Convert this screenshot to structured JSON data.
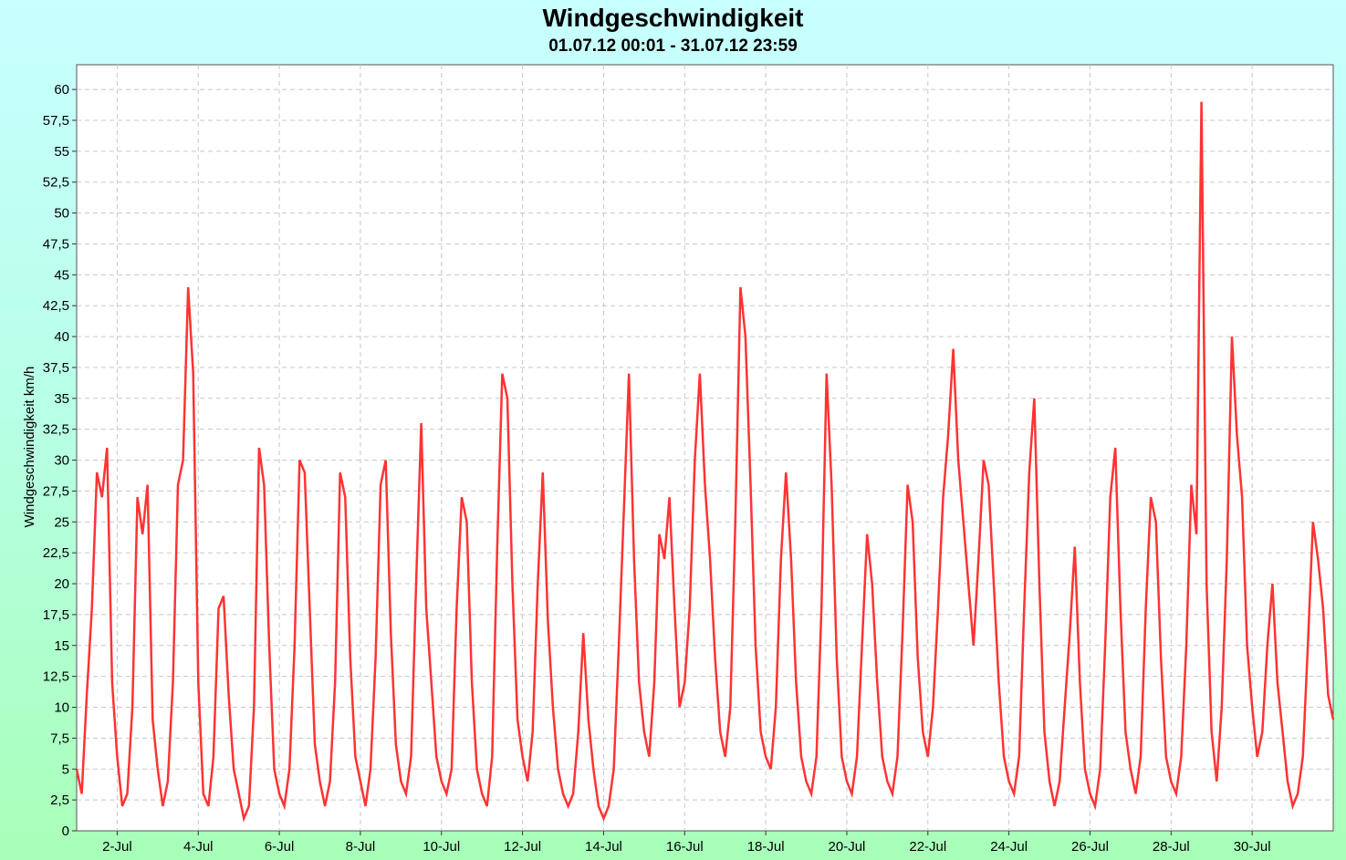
{
  "chart_data": {
    "type": "line",
    "title": "Windgeschwindigkeit",
    "subtitle": "01.07.12 00:01 - 31.07.12 23:59",
    "xlabel": "",
    "ylabel": "Windgeschwindigkeit km/h",
    "x_range": [
      "2012-07-01 00:01",
      "2012-07-31 23:59"
    ],
    "x_ticks": [
      "2-Jul",
      "4-Jul",
      "6-Jul",
      "8-Jul",
      "10-Jul",
      "12-Jul",
      "14-Jul",
      "16-Jul",
      "18-Jul",
      "20-Jul",
      "22-Jul",
      "24-Jul",
      "26-Jul",
      "28-Jul",
      "30-Jul"
    ],
    "x_tick_days": [
      2,
      4,
      6,
      8,
      10,
      12,
      14,
      16,
      18,
      20,
      22,
      24,
      26,
      28,
      30
    ],
    "ylim": [
      0,
      62
    ],
    "y_ticks": [
      "0",
      "2,5",
      "5",
      "7,5",
      "10",
      "12,5",
      "15",
      "17,5",
      "20",
      "22,5",
      "25",
      "27,5",
      "30",
      "32,5",
      "35",
      "37,5",
      "40",
      "42,5",
      "45",
      "47,5",
      "50",
      "52,5",
      "55",
      "57,5",
      "60"
    ],
    "y_tick_values": [
      0,
      2.5,
      5,
      7.5,
      10,
      12.5,
      15,
      17.5,
      20,
      22.5,
      25,
      27.5,
      30,
      32.5,
      35,
      37.5,
      40,
      42.5,
      45,
      47.5,
      50,
      52.5,
      55,
      57.5,
      60
    ],
    "grid": true,
    "series": [
      {
        "name": "",
        "color": "#ff3333",
        "points": [
          [
            "2012-07-01 00:00",
            5
          ],
          [
            "2012-07-01 03:00",
            3
          ],
          [
            "2012-07-01 06:00",
            11
          ],
          [
            "2012-07-01 09:00",
            18
          ],
          [
            "2012-07-01 12:00",
            29
          ],
          [
            "2012-07-01 15:00",
            27
          ],
          [
            "2012-07-01 18:00",
            31
          ],
          [
            "2012-07-01 21:00",
            12
          ],
          [
            "2012-07-02 00:00",
            6
          ],
          [
            "2012-07-02 03:00",
            2
          ],
          [
            "2012-07-02 06:00",
            3
          ],
          [
            "2012-07-02 09:00",
            10
          ],
          [
            "2012-07-02 12:00",
            27
          ],
          [
            "2012-07-02 15:00",
            24
          ],
          [
            "2012-07-02 18:00",
            28
          ],
          [
            "2012-07-02 21:00",
            9
          ],
          [
            "2012-07-03 00:00",
            5
          ],
          [
            "2012-07-03 03:00",
            2
          ],
          [
            "2012-07-03 06:00",
            4
          ],
          [
            "2012-07-03 09:00",
            12
          ],
          [
            "2012-07-03 12:00",
            28
          ],
          [
            "2012-07-03 15:00",
            30
          ],
          [
            "2012-07-03 18:00",
            44
          ],
          [
            "2012-07-03 21:00",
            37
          ],
          [
            "2012-07-04 00:00",
            12
          ],
          [
            "2012-07-04 03:00",
            3
          ],
          [
            "2012-07-04 06:00",
            2
          ],
          [
            "2012-07-04 09:00",
            6
          ],
          [
            "2012-07-04 12:00",
            18
          ],
          [
            "2012-07-04 15:00",
            19
          ],
          [
            "2012-07-04 18:00",
            11
          ],
          [
            "2012-07-04 21:00",
            5
          ],
          [
            "2012-07-05 00:00",
            3
          ],
          [
            "2012-07-05 03:00",
            1
          ],
          [
            "2012-07-05 06:00",
            2
          ],
          [
            "2012-07-05 09:00",
            10
          ],
          [
            "2012-07-05 12:00",
            31
          ],
          [
            "2012-07-05 15:00",
            28
          ],
          [
            "2012-07-05 18:00",
            15
          ],
          [
            "2012-07-05 21:00",
            5
          ],
          [
            "2012-07-06 00:00",
            3
          ],
          [
            "2012-07-06 03:00",
            2
          ],
          [
            "2012-07-06 06:00",
            5
          ],
          [
            "2012-07-06 09:00",
            15
          ],
          [
            "2012-07-06 12:00",
            30
          ],
          [
            "2012-07-06 15:00",
            29
          ],
          [
            "2012-07-06 18:00",
            18
          ],
          [
            "2012-07-06 21:00",
            7
          ],
          [
            "2012-07-07 00:00",
            4
          ],
          [
            "2012-07-07 03:00",
            2
          ],
          [
            "2012-07-07 06:00",
            4
          ],
          [
            "2012-07-07 09:00",
            12
          ],
          [
            "2012-07-07 12:00",
            29
          ],
          [
            "2012-07-07 15:00",
            27
          ],
          [
            "2012-07-07 18:00",
            14
          ],
          [
            "2012-07-07 21:00",
            6
          ],
          [
            "2012-07-08 00:00",
            4
          ],
          [
            "2012-07-08 03:00",
            2
          ],
          [
            "2012-07-08 06:00",
            5
          ],
          [
            "2012-07-08 09:00",
            14
          ],
          [
            "2012-07-08 12:00",
            28
          ],
          [
            "2012-07-08 15:00",
            30
          ],
          [
            "2012-07-08 18:00",
            16
          ],
          [
            "2012-07-08 21:00",
            7
          ],
          [
            "2012-07-09 00:00",
            4
          ],
          [
            "2012-07-09 03:00",
            3
          ],
          [
            "2012-07-09 06:00",
            6
          ],
          [
            "2012-07-09 09:00",
            20
          ],
          [
            "2012-07-09 12:00",
            33
          ],
          [
            "2012-07-09 15:00",
            18
          ],
          [
            "2012-07-09 18:00",
            12
          ],
          [
            "2012-07-09 21:00",
            6
          ],
          [
            "2012-07-10 00:00",
            4
          ],
          [
            "2012-07-10 03:00",
            3
          ],
          [
            "2012-07-10 06:00",
            5
          ],
          [
            "2012-07-10 09:00",
            18
          ],
          [
            "2012-07-10 12:00",
            27
          ],
          [
            "2012-07-10 15:00",
            25
          ],
          [
            "2012-07-10 18:00",
            12
          ],
          [
            "2012-07-10 21:00",
            5
          ],
          [
            "2012-07-11 00:00",
            3
          ],
          [
            "2012-07-11 03:00",
            2
          ],
          [
            "2012-07-11 06:00",
            6
          ],
          [
            "2012-07-11 09:00",
            23
          ],
          [
            "2012-07-11 12:00",
            37
          ],
          [
            "2012-07-11 15:00",
            35
          ],
          [
            "2012-07-11 18:00",
            20
          ],
          [
            "2012-07-11 21:00",
            9
          ],
          [
            "2012-07-12 00:00",
            6
          ],
          [
            "2012-07-12 03:00",
            4
          ],
          [
            "2012-07-12 06:00",
            8
          ],
          [
            "2012-07-12 09:00",
            20
          ],
          [
            "2012-07-12 12:00",
            29
          ],
          [
            "2012-07-12 15:00",
            17
          ],
          [
            "2012-07-12 18:00",
            10
          ],
          [
            "2012-07-12 21:00",
            5
          ],
          [
            "2012-07-13 00:00",
            3
          ],
          [
            "2012-07-13 03:00",
            2
          ],
          [
            "2012-07-13 06:00",
            3
          ],
          [
            "2012-07-13 09:00",
            8
          ],
          [
            "2012-07-13 12:00",
            16
          ],
          [
            "2012-07-13 15:00",
            9
          ],
          [
            "2012-07-13 18:00",
            5
          ],
          [
            "2012-07-13 21:00",
            2
          ],
          [
            "2012-07-14 00:00",
            1
          ],
          [
            "2012-07-14 03:00",
            2
          ],
          [
            "2012-07-14 06:00",
            5
          ],
          [
            "2012-07-14 09:00",
            15
          ],
          [
            "2012-07-14 12:00",
            26
          ],
          [
            "2012-07-14 15:00",
            37
          ],
          [
            "2012-07-14 18:00",
            22
          ],
          [
            "2012-07-14 21:00",
            12
          ],
          [
            "2012-07-15 00:00",
            8
          ],
          [
            "2012-07-15 03:00",
            6
          ],
          [
            "2012-07-15 06:00",
            12
          ],
          [
            "2012-07-15 09:00",
            24
          ],
          [
            "2012-07-15 12:00",
            22
          ],
          [
            "2012-07-15 15:00",
            27
          ],
          [
            "2012-07-15 18:00",
            18
          ],
          [
            "2012-07-15 21:00",
            10
          ],
          [
            "2012-07-16 00:00",
            12
          ],
          [
            "2012-07-16 03:00",
            18
          ],
          [
            "2012-07-16 06:00",
            30
          ],
          [
            "2012-07-16 09:00",
            37
          ],
          [
            "2012-07-16 12:00",
            28
          ],
          [
            "2012-07-16 15:00",
            22
          ],
          [
            "2012-07-16 18:00",
            14
          ],
          [
            "2012-07-16 21:00",
            8
          ],
          [
            "2012-07-17 00:00",
            6
          ],
          [
            "2012-07-17 03:00",
            10
          ],
          [
            "2012-07-17 06:00",
            25
          ],
          [
            "2012-07-17 09:00",
            44
          ],
          [
            "2012-07-17 12:00",
            40
          ],
          [
            "2012-07-17 15:00",
            28
          ],
          [
            "2012-07-17 18:00",
            15
          ],
          [
            "2012-07-17 21:00",
            8
          ],
          [
            "2012-07-18 00:00",
            6
          ],
          [
            "2012-07-18 03:00",
            5
          ],
          [
            "2012-07-18 06:00",
            10
          ],
          [
            "2012-07-18 09:00",
            22
          ],
          [
            "2012-07-18 12:00",
            29
          ],
          [
            "2012-07-18 15:00",
            22
          ],
          [
            "2012-07-18 18:00",
            12
          ],
          [
            "2012-07-18 21:00",
            6
          ],
          [
            "2012-07-19 00:00",
            4
          ],
          [
            "2012-07-19 03:00",
            3
          ],
          [
            "2012-07-19 06:00",
            6
          ],
          [
            "2012-07-19 09:00",
            18
          ],
          [
            "2012-07-19 12:00",
            37
          ],
          [
            "2012-07-19 15:00",
            28
          ],
          [
            "2012-07-19 18:00",
            14
          ],
          [
            "2012-07-19 21:00",
            6
          ],
          [
            "2012-07-20 00:00",
            4
          ],
          [
            "2012-07-20 03:00",
            3
          ],
          [
            "2012-07-20 06:00",
            6
          ],
          [
            "2012-07-20 09:00",
            15
          ],
          [
            "2012-07-20 12:00",
            24
          ],
          [
            "2012-07-20 15:00",
            20
          ],
          [
            "2012-07-20 18:00",
            12
          ],
          [
            "2012-07-20 21:00",
            6
          ],
          [
            "2012-07-21 00:00",
            4
          ],
          [
            "2012-07-21 03:00",
            3
          ],
          [
            "2012-07-21 06:00",
            6
          ],
          [
            "2012-07-21 09:00",
            16
          ],
          [
            "2012-07-21 12:00",
            28
          ],
          [
            "2012-07-21 15:00",
            25
          ],
          [
            "2012-07-21 18:00",
            14
          ],
          [
            "2012-07-21 21:00",
            8
          ],
          [
            "2012-07-22 00:00",
            6
          ],
          [
            "2012-07-22 03:00",
            10
          ],
          [
            "2012-07-22 06:00",
            18
          ],
          [
            "2012-07-22 09:00",
            27
          ],
          [
            "2012-07-22 12:00",
            32
          ],
          [
            "2012-07-22 15:00",
            39
          ],
          [
            "2012-07-22 18:00",
            30
          ],
          [
            "2012-07-22 21:00",
            25
          ],
          [
            "2012-07-23 00:00",
            20
          ],
          [
            "2012-07-23 03:00",
            15
          ],
          [
            "2012-07-23 06:00",
            22
          ],
          [
            "2012-07-23 09:00",
            30
          ],
          [
            "2012-07-23 12:00",
            28
          ],
          [
            "2012-07-23 15:00",
            20
          ],
          [
            "2012-07-23 18:00",
            12
          ],
          [
            "2012-07-23 21:00",
            6
          ],
          [
            "2012-07-24 00:00",
            4
          ],
          [
            "2012-07-24 03:00",
            3
          ],
          [
            "2012-07-24 06:00",
            6
          ],
          [
            "2012-07-24 09:00",
            18
          ],
          [
            "2012-07-24 12:00",
            29
          ],
          [
            "2012-07-24 15:00",
            35
          ],
          [
            "2012-07-24 18:00",
            20
          ],
          [
            "2012-07-24 21:00",
            8
          ],
          [
            "2012-07-25 00:00",
            4
          ],
          [
            "2012-07-25 03:00",
            2
          ],
          [
            "2012-07-25 06:00",
            4
          ],
          [
            "2012-07-25 09:00",
            10
          ],
          [
            "2012-07-25 12:00",
            16
          ],
          [
            "2012-07-25 15:00",
            23
          ],
          [
            "2012-07-25 18:00",
            12
          ],
          [
            "2012-07-25 21:00",
            5
          ],
          [
            "2012-07-26 00:00",
            3
          ],
          [
            "2012-07-26 03:00",
            2
          ],
          [
            "2012-07-26 06:00",
            5
          ],
          [
            "2012-07-26 09:00",
            15
          ],
          [
            "2012-07-26 12:00",
            27
          ],
          [
            "2012-07-26 15:00",
            31
          ],
          [
            "2012-07-26 18:00",
            18
          ],
          [
            "2012-07-26 21:00",
            8
          ],
          [
            "2012-07-27 00:00",
            5
          ],
          [
            "2012-07-27 03:00",
            3
          ],
          [
            "2012-07-27 06:00",
            6
          ],
          [
            "2012-07-27 09:00",
            18
          ],
          [
            "2012-07-27 12:00",
            27
          ],
          [
            "2012-07-27 15:00",
            25
          ],
          [
            "2012-07-27 18:00",
            14
          ],
          [
            "2012-07-27 21:00",
            6
          ],
          [
            "2012-07-28 00:00",
            4
          ],
          [
            "2012-07-28 03:00",
            3
          ],
          [
            "2012-07-28 06:00",
            6
          ],
          [
            "2012-07-28 09:00",
            15
          ],
          [
            "2012-07-28 12:00",
            28
          ],
          [
            "2012-07-28 15:00",
            24
          ],
          [
            "2012-07-28 18:00",
            59
          ],
          [
            "2012-07-28 21:00",
            20
          ],
          [
            "2012-07-29 00:00",
            8
          ],
          [
            "2012-07-29 03:00",
            4
          ],
          [
            "2012-07-29 06:00",
            10
          ],
          [
            "2012-07-29 09:00",
            22
          ],
          [
            "2012-07-29 12:00",
            40
          ],
          [
            "2012-07-29 15:00",
            32
          ],
          [
            "2012-07-29 18:00",
            27
          ],
          [
            "2012-07-29 21:00",
            15
          ],
          [
            "2012-07-30 00:00",
            10
          ],
          [
            "2012-07-30 03:00",
            6
          ],
          [
            "2012-07-30 06:00",
            8
          ],
          [
            "2012-07-30 09:00",
            15
          ],
          [
            "2012-07-30 12:00",
            20
          ],
          [
            "2012-07-30 15:00",
            12
          ],
          [
            "2012-07-30 18:00",
            8
          ],
          [
            "2012-07-30 21:00",
            4
          ],
          [
            "2012-07-31 00:00",
            2
          ],
          [
            "2012-07-31 03:00",
            3
          ],
          [
            "2012-07-31 06:00",
            6
          ],
          [
            "2012-07-31 09:00",
            15
          ],
          [
            "2012-07-31 12:00",
            25
          ],
          [
            "2012-07-31 15:00",
            22
          ],
          [
            "2012-07-31 18:00",
            18
          ],
          [
            "2012-07-31 21:00",
            11
          ],
          [
            "2012-07-31 23:59",
            9
          ]
        ]
      }
    ]
  }
}
